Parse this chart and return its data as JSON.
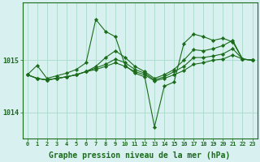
{
  "background_color": "#d8f0f0",
  "grid_color": "#b0ddd0",
  "line_color": "#1a6b1a",
  "marker_color": "#1a6b1a",
  "xlabel": "Graphe pression niveau de la mer (hPa)",
  "xlabel_fontsize": 7,
  "yticks": [
    1014,
    1015
  ],
  "xlim": [
    -0.5,
    23.5
  ],
  "ylim": [
    1013.5,
    1016.1
  ],
  "series": [
    {
      "x": [
        0,
        1,
        2,
        3,
        4,
        5,
        6,
        7,
        8,
        9,
        10,
        11,
        12,
        13,
        14,
        15,
        16,
        17,
        18,
        19,
        20,
        21,
        22,
        23
      ],
      "y": [
        1014.72,
        1014.9,
        1014.65,
        1014.7,
        1014.75,
        1014.82,
        1014.95,
        1015.78,
        1015.55,
        1015.45,
        1014.9,
        1014.75,
        1014.68,
        1013.72,
        1014.5,
        1014.58,
        1015.32,
        1015.5,
        1015.45,
        1015.38,
        1015.42,
        1015.35,
        1015.02,
        1015.0
      ]
    },
    {
      "x": [
        0,
        1,
        2,
        3,
        4,
        5,
        6,
        7,
        8,
        9,
        10,
        11,
        12,
        13,
        14,
        15,
        16,
        17,
        18,
        19,
        20,
        21,
        22,
        23
      ],
      "y": [
        1014.72,
        1014.65,
        1014.62,
        1014.65,
        1014.68,
        1014.72,
        1014.78,
        1014.88,
        1015.05,
        1015.18,
        1015.05,
        1014.88,
        1014.78,
        1014.65,
        1014.72,
        1014.82,
        1015.0,
        1015.2,
        1015.18,
        1015.22,
        1015.28,
        1015.38,
        1015.02,
        1015.0
      ]
    },
    {
      "x": [
        0,
        1,
        2,
        3,
        4,
        5,
        6,
        7,
        8,
        9,
        10,
        11,
        12,
        13,
        14,
        15,
        16,
        17,
        18,
        19,
        20,
        21,
        22,
        23
      ],
      "y": [
        1014.72,
        1014.65,
        1014.62,
        1014.65,
        1014.68,
        1014.72,
        1014.78,
        1014.85,
        1014.92,
        1015.02,
        1014.95,
        1014.82,
        1014.75,
        1014.62,
        1014.68,
        1014.78,
        1014.88,
        1015.05,
        1015.05,
        1015.08,
        1015.12,
        1015.22,
        1015.02,
        1015.0
      ]
    },
    {
      "x": [
        0,
        1,
        2,
        3,
        4,
        5,
        6,
        7,
        8,
        9,
        10,
        11,
        12,
        13,
        14,
        15,
        16,
        17,
        18,
        19,
        20,
        21,
        22,
        23
      ],
      "y": [
        1014.72,
        1014.65,
        1014.62,
        1014.65,
        1014.68,
        1014.72,
        1014.78,
        1014.82,
        1014.88,
        1014.95,
        1014.88,
        1014.78,
        1014.72,
        1014.6,
        1014.65,
        1014.72,
        1014.8,
        1014.92,
        1014.95,
        1015.0,
        1015.02,
        1015.1,
        1015.02,
        1015.0
      ]
    }
  ]
}
